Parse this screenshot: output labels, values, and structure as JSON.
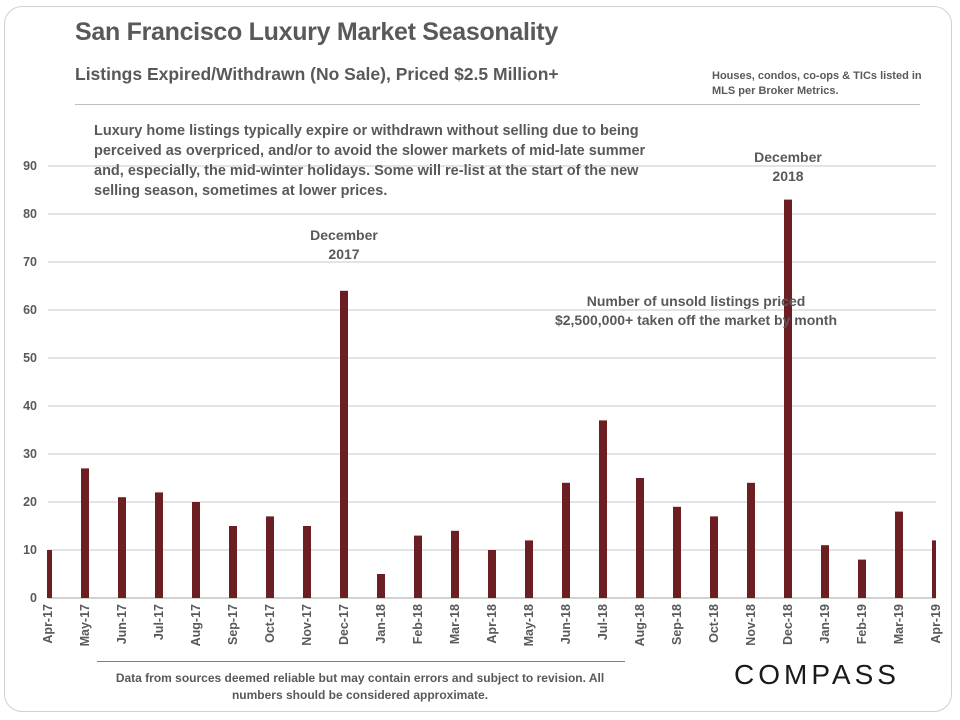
{
  "colors": {
    "bar": "#6b1f23",
    "grid": "#c8c8c8",
    "text": "#595959",
    "logo": "#1a1a1a"
  },
  "header": {
    "title": "San Francisco Luxury Market Seasonality",
    "subtitle": "Listings Expired/Withdrawn (No Sale), Priced $2.5 Million+",
    "source_note": "Houses, condos, co-ops & TICs listed in MLS per Broker Metrics."
  },
  "intro_text": "Luxury home listings typically expire or withdrawn without selling due to being perceived as overpriced, and/or to avoid the slower markets of mid-late summer and, especially, the mid-winter holidays. Some will re-list at the start of the new selling season, sometimes at lower prices.",
  "footer": {
    "disclaimer": "Data from sources deemed reliable but may contain errors and subject to revision. All numbers should be considered approximate.",
    "logo": "COMPASS"
  },
  "chart_data": {
    "type": "bar",
    "title": "Listings Expired/Withdrawn (No Sale), Priced $2.5 Million+",
    "xlabel": "",
    "ylabel": "",
    "ylim": [
      0,
      90
    ],
    "yticks": [
      0,
      10,
      20,
      30,
      40,
      50,
      60,
      70,
      80,
      90
    ],
    "grid": true,
    "categories": [
      "Apr-17",
      "May-17",
      "Jun-17",
      "Jul-17",
      "Aug-17",
      "Sep-17",
      "Oct-17",
      "Nov-17",
      "Dec-17",
      "Jan-18",
      "Feb-18",
      "Mar-18",
      "Apr-18",
      "May-18",
      "Jun-18",
      "Jul-18",
      "Aug-18",
      "Sep-18",
      "Oct-18",
      "Nov-18",
      "Dec-18",
      "Jan-19",
      "Feb-19",
      "Mar-19",
      "Apr-19"
    ],
    "values": [
      10,
      27,
      21,
      22,
      20,
      15,
      17,
      15,
      64,
      5,
      13,
      14,
      10,
      12,
      24,
      37,
      25,
      19,
      17,
      24,
      83,
      11,
      8,
      18,
      12
    ],
    "annotations": [
      {
        "lines": [
          "December",
          "2017"
        ],
        "category": "Dec-17"
      },
      {
        "lines": [
          "December",
          "2018"
        ],
        "category": "Dec-18"
      },
      {
        "lines": [
          "Number of unsold listings priced",
          "$2,500,000+ taken off the market by month"
        ],
        "category": "Jun-18"
      }
    ]
  }
}
